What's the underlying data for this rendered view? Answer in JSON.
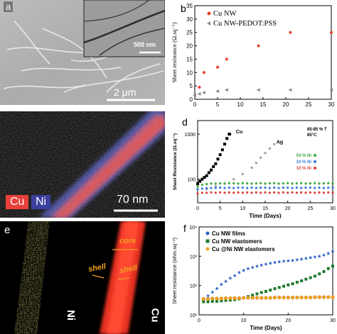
{
  "panels": {
    "a": {
      "label": "a",
      "inset_scale": "500 nm",
      "scale": "2 μm"
    },
    "b": {
      "label": "b",
      "chart_data": {
        "type": "scatter",
        "ylabel": "Sheet resistance (Ω.sq⁻¹)",
        "xlabel": "",
        "xlim": [
          0,
          30
        ],
        "ylim": [
          0,
          35
        ],
        "xticks": [
          "0",
          "5",
          "10",
          "15",
          "20",
          "25",
          "30"
        ],
        "yticks": [
          "0",
          "5",
          "10",
          "15",
          "20",
          "25",
          "30",
          "35"
        ],
        "series": [
          {
            "name": "Cu NW",
            "color": "#e8402a",
            "x": [
              1,
              2,
              5,
              7,
              14,
              21,
              30
            ],
            "y": [
              4.5,
              10,
              12,
              15,
              20,
              25,
              25
            ]
          },
          {
            "name": "Cu NW-PEDOT:PSS",
            "color": "#8a8a8a",
            "x": [
              0,
              1,
              2,
              5,
              7,
              14,
              21,
              30
            ],
            "y": [
              1.5,
              2,
              2.5,
              3,
              3.5,
              3.5,
              3.5,
              3.5
            ]
          }
        ]
      }
    },
    "c": {
      "label_cu": "Cu",
      "label_ni": "Ni",
      "scale": "70 nm",
      "color_cu": "#e8403a",
      "color_ni": "#3b3f9e"
    },
    "d": {
      "label": "d",
      "chart_data": {
        "type": "line",
        "ylabel": "Sheet Resistance (Ω.sq⁻¹)",
        "xlabel": "Time (Days)",
        "xlim": [
          0,
          30
        ],
        "ylim": [
          30,
          2000
        ],
        "yscale": "log",
        "xticks": [
          "0",
          "5",
          "10",
          "15",
          "20",
          "25",
          "30"
        ],
        "yticks": [
          "100",
          "1000"
        ],
        "annotation": "85-85 % T\n85°C",
        "series": [
          {
            "name": "Cu",
            "color": "#000000",
            "x": [
              0,
              0.5,
              1,
              1.5,
              2,
              2.5,
              3,
              3.5,
              4,
              4.5,
              5,
              5.5,
              6,
              6.5,
              7
            ],
            "y": [
              80,
              90,
              100,
              110,
              120,
              140,
              160,
              190,
              220,
              280,
              350,
              450,
              600,
              800,
              1000
            ]
          },
          {
            "name": "Ag",
            "color": "#9a9a9a",
            "x": [
              2,
              4,
              6,
              8,
              10,
              12,
              13,
              14,
              15,
              16,
              17
            ],
            "y": [
              60,
              70,
              80,
              100,
              130,
              180,
              230,
              300,
              380,
              480,
              600
            ]
          },
          {
            "name": "54 % Ni",
            "color": "#3aaa3a",
            "x": [
              0,
              1,
              2,
              3,
              4,
              5,
              6,
              7,
              8,
              9,
              10,
              11,
              12,
              13,
              14,
              15,
              16,
              17,
              18,
              19,
              20,
              21,
              22,
              23,
              24,
              25,
              26,
              27,
              28,
              29,
              30
            ],
            "y": [
              70,
              75,
              78,
              80,
              80,
              81,
              80,
              82,
              81,
              80,
              82,
              81,
              80,
              81,
              82,
              80,
              81,
              82,
              80,
              81,
              82,
              80,
              81,
              82,
              80,
              81,
              82,
              80,
              81,
              82,
              81
            ]
          },
          {
            "name": "34 % Ni",
            "color": "#3a7ad8",
            "x": [
              0,
              1,
              2,
              3,
              4,
              5,
              6,
              7,
              8,
              9,
              10,
              11,
              12,
              13,
              14,
              15,
              16,
              17,
              18,
              19,
              20,
              21,
              22,
              23,
              24,
              25,
              26,
              27,
              28,
              29,
              30
            ],
            "y": [
              60,
              62,
              63,
              64,
              64,
              65,
              64,
              65,
              64,
              65,
              65,
              64,
              65,
              64,
              65,
              65,
              64,
              65,
              64,
              65,
              65,
              64,
              65,
              64,
              65,
              65,
              64,
              65,
              64,
              65,
              65
            ]
          },
          {
            "name": "10 % Ni",
            "color": "#e04040",
            "x": [
              0,
              1,
              2,
              3,
              4,
              5,
              6,
              7,
              8,
              9,
              10,
              11,
              12,
              13,
              14,
              15,
              16,
              17,
              18,
              19,
              20,
              21,
              22,
              23,
              24,
              25,
              26,
              27,
              28,
              29,
              30
            ],
            "y": [
              48,
              50,
              50,
              51,
              50,
              51,
              50,
              51,
              50,
              51,
              50,
              51,
              50,
              51,
              50,
              51,
              50,
              51,
              50,
              51,
              50,
              51,
              50,
              51,
              50,
              51,
              50,
              51,
              50,
              51,
              50
            ]
          }
        ]
      }
    },
    "e": {
      "label": "e",
      "label_ni": "Ni",
      "label_cu": "Cu",
      "core": "core",
      "shell_left": "shell",
      "shell_right": "shell"
    },
    "f": {
      "label": "f",
      "chart_data": {
        "type": "line",
        "ylabel": "Sheet resistance (ohm.sq⁻¹)",
        "xlabel": "Time (Days)",
        "xlim": [
          0,
          30
        ],
        "ylim": [
          10,
          10000
        ],
        "yscale": "log",
        "xticks": [
          "0",
          "10",
          "20",
          "30"
        ],
        "yticks": [
          "10¹",
          "10²",
          "10³",
          "10⁴"
        ],
        "series": [
          {
            "name": "Cu NW films",
            "color": "#2a5fc8",
            "x": [
              1,
              2,
              3,
              4,
              5,
              6,
              7,
              8,
              9,
              10,
              11,
              12,
              13,
              14,
              15,
              16,
              17,
              18,
              19,
              20,
              21,
              22,
              23,
              24,
              25,
              26,
              27,
              28,
              29,
              30
            ],
            "y": [
              30,
              45,
              60,
              80,
              110,
              140,
              180,
              220,
              280,
              330,
              380,
              420,
              460,
              500,
              540,
              580,
              620,
              650,
              680,
              700,
              720,
              760,
              800,
              850,
              900,
              950,
              1000,
              1100,
              1250,
              1500
            ]
          },
          {
            "name": "Cu NW elastomers",
            "color": "#1d7a2a",
            "x": [
              1,
              2,
              3,
              4,
              5,
              6,
              7,
              8,
              9,
              10,
              11,
              12,
              13,
              14,
              15,
              16,
              17,
              18,
              19,
              20,
              21,
              22,
              23,
              24,
              25,
              26,
              27,
              28,
              29,
              30
            ],
            "y": [
              28,
              28,
              29,
              29,
              30,
              31,
              32,
              33,
              35,
              38,
              42,
              47,
              52,
              58,
              63,
              70,
              78,
              86,
              95,
              105,
              115,
              130,
              145,
              165,
              185,
              210,
              250,
              300,
              380,
              460
            ]
          },
          {
            "name": "Cu @Ni NW elastomers",
            "color": "#f0a020",
            "x": [
              1,
              2,
              3,
              4,
              5,
              6,
              7,
              8,
              9,
              10,
              11,
              12,
              13,
              14,
              15,
              16,
              17,
              18,
              19,
              20,
              21,
              22,
              23,
              24,
              25,
              26,
              27,
              28,
              29,
              30
            ],
            "y": [
              35,
              35,
              36,
              36,
              36,
              37,
              37,
              37,
              37,
              38,
              38,
              38,
              38,
              38,
              38,
              38,
              39,
              39,
              39,
              39,
              39,
              39,
              39,
              39,
              39,
              40,
              40,
              40,
              40,
              40
            ]
          }
        ]
      }
    }
  }
}
